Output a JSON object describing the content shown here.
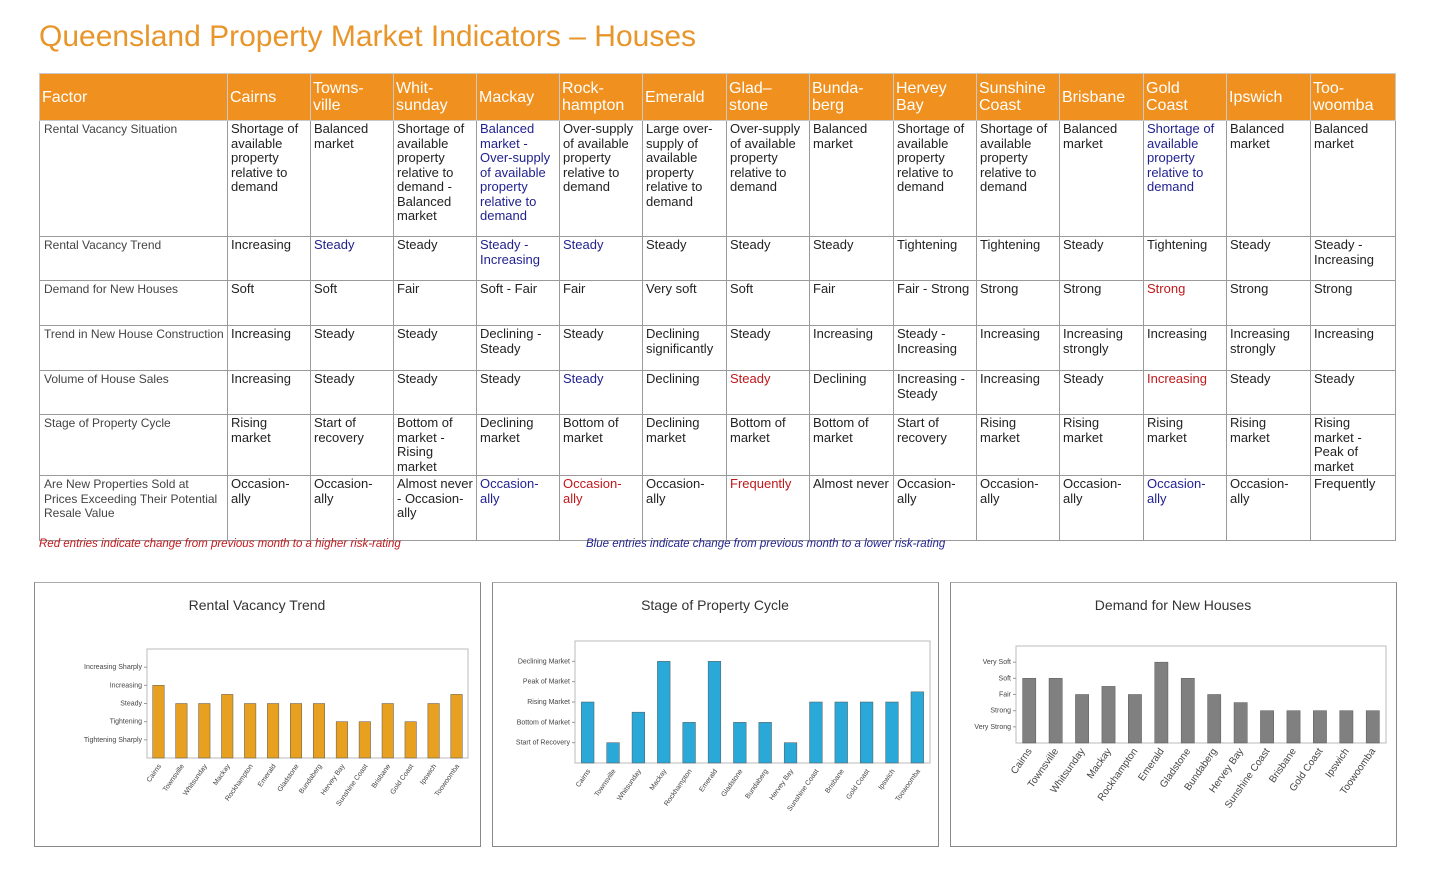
{
  "title": "Queensland Property Market Indicators – Houses",
  "table": {
    "header": [
      "Factor",
      "Cairns",
      "Towns-ville",
      "Whit-sunday",
      "Mackay",
      "Rock-hampton",
      "Emerald",
      "Glad–stone",
      "Bunda-berg",
      "Hervey Bay",
      "Sunshine Coast",
      "Brisbane",
      "Gold Coast",
      "Ipswich",
      "Too-woomba"
    ],
    "rows": [
      {
        "factor": "Rental Vacancy Situation",
        "cells": [
          "Shortage of available property relative to demand",
          "Balanced market",
          "Shortage of available property relative to demand - Balanced market",
          {
            "text": "Balanced market - Over-supply of available property relative to demand",
            "color": "#1f1f8f"
          },
          "Over-supply of available property relative to demand",
          "Large over-supply of available property relative to demand",
          "Over-supply of available property relative to demand",
          "Balanced market",
          "Shortage of available property relative to demand",
          "Shortage of available property relative to demand",
          "Balanced market",
          {
            "text": "Shortage of available property relative to demand",
            "color": "#1f1f8f"
          },
          "Balanced market",
          "Balanced market"
        ]
      },
      {
        "factor": "Rental Vacancy Trend",
        "cells": [
          "Increasing",
          {
            "text": "Steady",
            "color": "#1f1f8f"
          },
          "Steady",
          {
            "text": "Steady - Increasing",
            "color": "#1f1f8f"
          },
          {
            "text": "Steady",
            "color": "#1f1f8f"
          },
          "Steady",
          "Steady",
          "Steady",
          "Tightening",
          "Tightening",
          "Steady",
          "Tightening",
          "Steady",
          "Steady - Increasing"
        ]
      },
      {
        "factor": "Demand for New Houses",
        "cells": [
          "Soft",
          "Soft",
          "Fair",
          "Soft - Fair",
          "Fair",
          "Very soft",
          "Soft",
          "Fair",
          "Fair - Strong",
          "Strong",
          "Strong",
          {
            "text": "Strong",
            "color": "#c0181b"
          },
          "Strong",
          "Strong"
        ]
      },
      {
        "factor": "Trend in New House Construction",
        "cells": [
          "Increasing",
          "Steady",
          "Steady",
          "Declining - Steady",
          "Steady",
          "Declining significantly",
          "Steady",
          "Increasing",
          "Steady - Increasing",
          "Increasing",
          "Increasing strongly",
          "Increasing",
          "Increasing strongly",
          "Increasing"
        ]
      },
      {
        "factor": "Volume of House Sales",
        "cells": [
          "Increasing",
          "Steady",
          "Steady",
          "Steady",
          {
            "text": "Steady",
            "color": "#1f1f8f"
          },
          "Declining",
          {
            "text": "Steady",
            "color": "#c0181b"
          },
          "Declining",
          "Increasing - Steady",
          "Increasing",
          "Steady",
          {
            "text": "Increasing",
            "color": "#c0181b"
          },
          "Steady",
          "Steady"
        ]
      },
      {
        "factor": "Stage of Property Cycle",
        "cells": [
          "Rising market",
          "Start of recovery",
          "Bottom of market - Rising market",
          "Declining market",
          "Bottom of market",
          "Declining market",
          "Bottom of market",
          "Bottom of market",
          "Start of recovery",
          "Rising market",
          "Rising market",
          "Rising market",
          "Rising market",
          "Rising market - Peak of market"
        ]
      },
      {
        "factor": "Are New Properties Sold at Prices Exceeding Their Potential Resale Value",
        "cells": [
          "Occasion-ally",
          "Occasion-ally",
          "Almost never - Occasion-ally",
          {
            "text": "Occasion-ally",
            "color": "#1f1f8f"
          },
          {
            "text": "Occasion-ally",
            "color": "#c0181b"
          },
          "Occasion-ally",
          {
            "text": "Frequently",
            "color": "#c0181b"
          },
          "Almost never",
          "Occasion-ally",
          "Occasion-ally",
          "Occasion-ally",
          {
            "text": "Occasion-ally",
            "color": "#1f1f8f"
          },
          "Occasion-ally",
          "Frequently"
        ]
      }
    ]
  },
  "notes": [
    {
      "text": "Red entries indicate change from previous month to a higher risk-rating",
      "color": "#c0181b"
    },
    {
      "text": "Blue entries indicate change from previous month to a lower risk-rating",
      "color": "#1f1f8f"
    }
  ],
  "chart_data": [
    {
      "type": "bar",
      "title": "Rental Vacancy Trend",
      "color": "#e8a020",
      "categories": [
        "Cairns",
        "Townsville",
        "Whitsunday",
        "Mackay",
        "Rockhampton",
        "Emerald",
        "Gladstone",
        "Bundaberg",
        "Hervey Bay",
        "Sunshine Coast",
        "Brisbane",
        "Gold Coast",
        "Ipswich",
        "Toowoomba"
      ],
      "values": [
        4,
        3,
        3,
        3.5,
        3,
        3,
        3,
        3,
        2,
        2,
        3,
        2,
        3,
        3.5
      ],
      "ylim": [
        0,
        6
      ],
      "yticks": [
        {
          "value": 1,
          "label": "Tightening Sharply"
        },
        {
          "value": 2,
          "label": "Tightening"
        },
        {
          "value": 3,
          "label": "Steady"
        },
        {
          "value": 4,
          "label": "Increasing"
        },
        {
          "value": 5,
          "label": "Increasing Sharply"
        }
      ]
    },
    {
      "type": "bar",
      "title": "Stage of Property Cycle",
      "color": "#2aa8d8",
      "categories": [
        "Cairns",
        "Townsville",
        "Whitsunday",
        "Mackay",
        "Rockhampton",
        "Emerald",
        "Gladstone",
        "Bundaberg",
        "Hervey Bay",
        "Sunshine Coast",
        "Brisbane",
        "Gold Coast",
        "Ipswich",
        "Toowoomba"
      ],
      "values": [
        3,
        1,
        2.5,
        5,
        2,
        5,
        2,
        2,
        1,
        3,
        3,
        3,
        3,
        3.5
      ],
      "ylim": [
        0,
        6
      ],
      "yticks": [
        {
          "value": 1,
          "label": "Start of Recovery"
        },
        {
          "value": 2,
          "label": "Bottom of Market"
        },
        {
          "value": 3,
          "label": "Rising Market"
        },
        {
          "value": 4,
          "label": "Peak of Market"
        },
        {
          "value": 5,
          "label": "Declining Market"
        }
      ]
    },
    {
      "type": "bar",
      "title": "Demand for New Houses",
      "color": "#808080",
      "categories": [
        "Cairns",
        "Townsville",
        "Whitsunday",
        "Mackay",
        "Rockhampton",
        "Emerald",
        "Gladstone",
        "Bundaberg",
        "Hervey Bay",
        "Sunshine Coast",
        "Brisbane",
        "Gold Coast",
        "Ipswich",
        "Toowoomba"
      ],
      "values": [
        4,
        4,
        3,
        3.5,
        3,
        5,
        4,
        3,
        2.5,
        2,
        2,
        2,
        2,
        2
      ],
      "ylim": [
        0,
        6
      ],
      "yticks": [
        {
          "value": 1,
          "label": "Very Strong"
        },
        {
          "value": 2,
          "label": "Strong"
        },
        {
          "value": 3,
          "label": "Fair"
        },
        {
          "value": 4,
          "label": "Soft"
        },
        {
          "value": 5,
          "label": "Very Soft"
        }
      ]
    }
  ]
}
